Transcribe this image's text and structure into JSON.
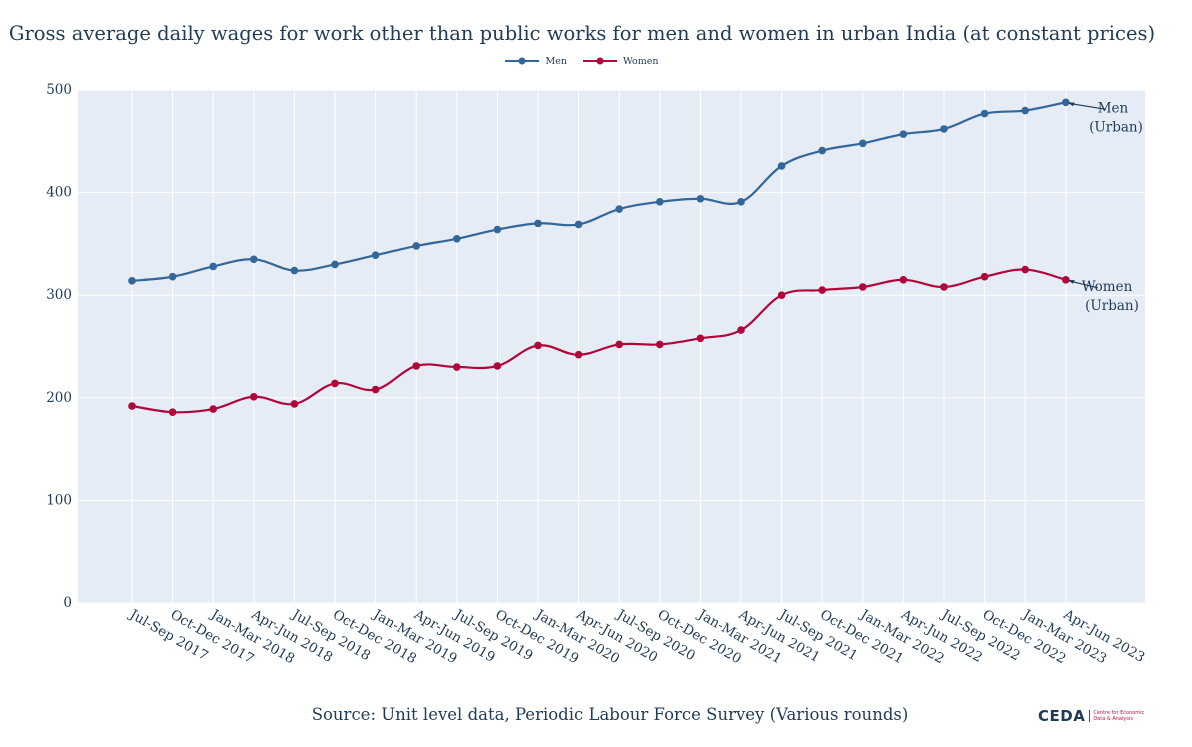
{
  "chart_data": {
    "type": "line",
    "title": "Gross average daily wages for work other than public works for men and women in urban India (at constant prices)",
    "xlabel": "",
    "ylabel": "",
    "ylim": [
      0,
      500
    ],
    "yticks": [
      0,
      100,
      200,
      300,
      400,
      500
    ],
    "grid": true,
    "legend_position": "top-center",
    "categories": [
      "Jul-Sep 2017",
      "Oct-Dec 2017",
      "Jan-Mar 2018",
      "Apr-Jun 2018",
      "Jul-Sep 2018",
      "Oct-Dec 2018",
      "Jan-Mar 2019",
      "Apr-Jun 2019",
      "Jul-Sep 2019",
      "Oct-Dec 2019",
      "Jan-Mar 2020",
      "Apr-Jun 2020",
      "Jul-Sep 2020",
      "Oct-Dec 2020",
      "Jan-Mar 2021",
      "Apr-Jun 2021",
      "Jul-Sep 2021",
      "Oct-Dec 2021",
      "Jan-Mar 2022",
      "Apr-Jun 2022",
      "Jul-Sep 2022",
      "Oct-Dec 2022",
      "Jan-Mar 2023",
      "Apr-Jun 2023"
    ],
    "series": [
      {
        "name": "Men",
        "color": "#336699",
        "values": [
          314,
          318,
          328,
          335,
          324,
          330,
          339,
          348,
          355,
          364,
          370,
          369,
          384,
          391,
          394,
          391,
          426,
          441,
          448,
          457,
          462,
          477,
          480,
          488
        ],
        "annotation": [
          "Men",
          "(Urban)"
        ]
      },
      {
        "name": "Women",
        "color": "#b0063a",
        "values": [
          192,
          186,
          189,
          201,
          194,
          214,
          208,
          231,
          230,
          231,
          251,
          242,
          252,
          252,
          258,
          266,
          300,
          305,
          308,
          315,
          308,
          318,
          325,
          315
        ],
        "annotation": [
          "Women",
          "(Urban)"
        ]
      }
    ],
    "source": "Source: Unit level data, Periodic Labour Force Survey (Various rounds)"
  },
  "logo": {
    "text": "CEDA",
    "sub_line1": "Centre for Economic",
    "sub_line2": "Data & Analysis"
  }
}
